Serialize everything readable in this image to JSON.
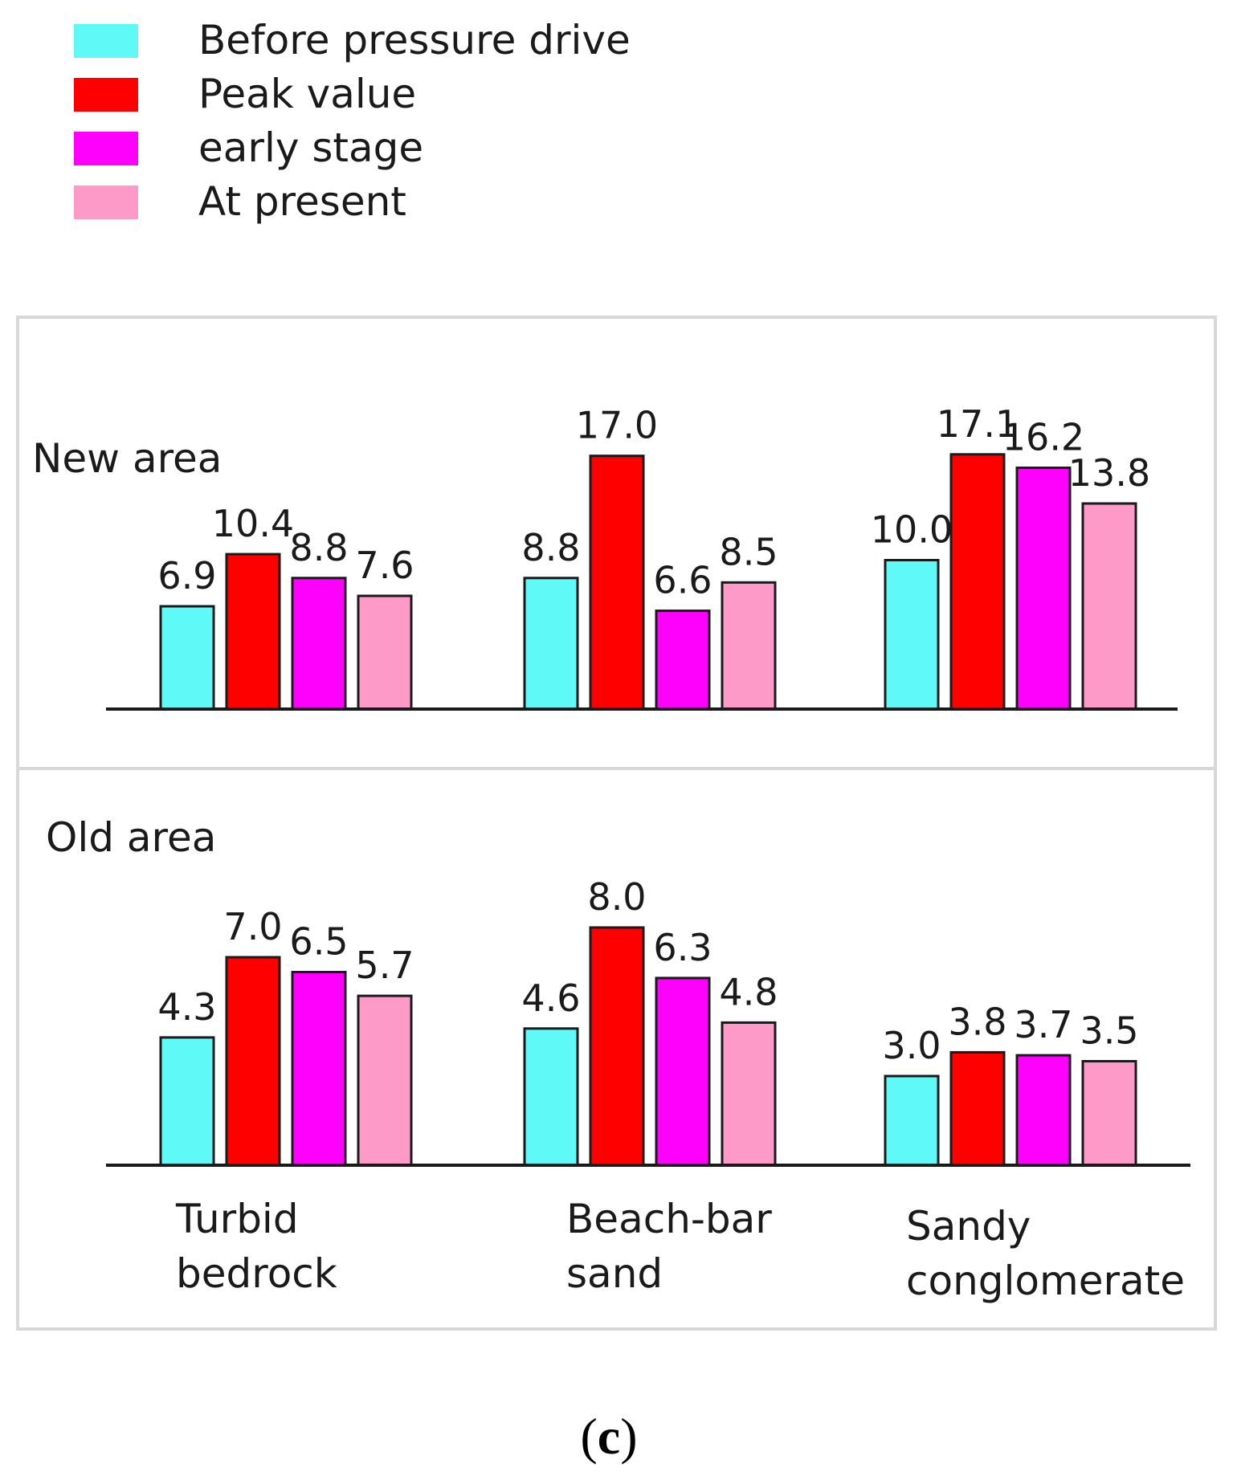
{
  "chart_data": {
    "type": "bar",
    "caption": {
      "open": "(",
      "letter": "c",
      "close": ")"
    },
    "categories": [
      {
        "line1": "Turbid",
        "line2": "bedrock"
      },
      {
        "line1": "Beach-bar",
        "line2": "sand"
      },
      {
        "line1": "Sandy",
        "line2": "conglomerate"
      }
    ],
    "series_legend": [
      {
        "name": "Before pressure drive",
        "color": "#5ffaf8"
      },
      {
        "name": "Peak value",
        "color": "#fe0000"
      },
      {
        "name": "early stage",
        "color": "#fe01fd"
      },
      {
        "name": "At present",
        "color": "#fd9ac8"
      }
    ],
    "panels": [
      {
        "title": "New area",
        "ylim": [
          0,
          18
        ],
        "values": [
          [
            "6.9",
            "10.4",
            "8.8",
            "7.6"
          ],
          [
            "8.8",
            "17.0",
            "6.6",
            "8.5"
          ],
          [
            "10.0",
            "17.1",
            "16.2",
            "13.8"
          ]
        ]
      },
      {
        "title": "Old area",
        "ylim": [
          0,
          10
        ],
        "values": [
          [
            "4.3",
            "7.0",
            "6.5",
            "5.7"
          ],
          [
            "4.6",
            "8.0",
            "6.3",
            "4.8"
          ],
          [
            "3.0",
            "3.8",
            "3.7",
            "3.5"
          ]
        ]
      }
    ]
  }
}
